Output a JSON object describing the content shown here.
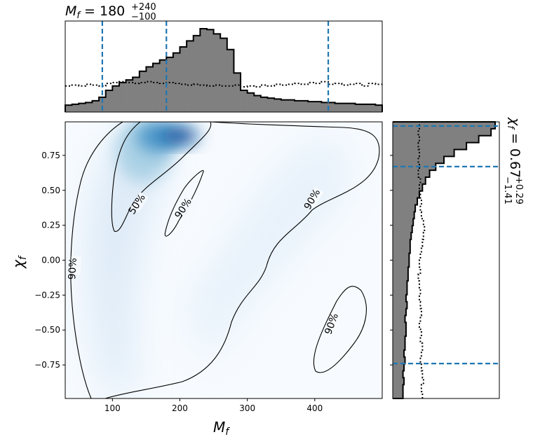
{
  "chart_data": {
    "type": "corner",
    "title_top": "M_f = 180 +240 −100",
    "top_stat": {
      "symbol": "M",
      "subscript": "f",
      "value": "180",
      "upper": "+240",
      "lower": "−100"
    },
    "right_stat": {
      "symbol": "χ",
      "subscript": "f",
      "value": "0.67",
      "upper": "+0.29",
      "lower": "−1.41"
    },
    "xlabel": {
      "symbol": "M",
      "subscript": "f"
    },
    "ylabel": {
      "symbol": "χ",
      "subscript": "f"
    },
    "xlim": [
      30,
      500
    ],
    "ylim": [
      -0.99,
      0.99
    ],
    "xticks": [
      100,
      200,
      300,
      400
    ],
    "yticks": [
      0.75,
      0.5,
      0.25,
      0.0,
      -0.25,
      -0.5,
      -0.75
    ],
    "ytick_labels": [
      "0.75",
      "0.50",
      "0.25",
      "0.00",
      "−0.25",
      "−0.50",
      "−0.75"
    ],
    "contour_labels": [
      "50%",
      "90%",
      "90%",
      "90%",
      "90%"
    ],
    "colors": {
      "histogram_fill": "#808080",
      "quantile_line": "#1f77b4",
      "density": "#08519c"
    },
    "mass_quantiles": [
      85,
      180,
      420
    ],
    "spin_quantiles": [
      -0.74,
      0.67,
      0.96
    ],
    "mass_bins": [
      30,
      500,
      47
    ],
    "mass_posterior_rel": [
      0.08,
      0.09,
      0.1,
      0.11,
      0.13,
      0.17,
      0.25,
      0.3,
      0.34,
      0.37,
      0.4,
      0.47,
      0.52,
      0.56,
      0.6,
      0.63,
      0.68,
      0.75,
      0.82,
      0.88,
      0.96,
      0.95,
      0.9,
      0.85,
      0.72,
      0.45,
      0.25,
      0.22,
      0.19,
      0.17,
      0.16,
      0.15,
      0.14,
      0.14,
      0.13,
      0.13,
      0.12,
      0.12,
      0.11,
      0.11,
      0.1,
      0.1,
      0.1,
      0.09,
      0.09,
      0.09,
      0.08
    ],
    "mass_prior_rel": [
      0.3,
      0.31,
      0.3,
      0.32,
      0.31,
      0.3,
      0.33,
      0.34,
      0.35,
      0.34,
      0.33,
      0.34,
      0.35,
      0.34,
      0.33,
      0.34,
      0.33,
      0.32,
      0.31,
      0.32,
      0.31,
      0.3,
      0.31,
      0.3,
      0.3,
      0.31,
      0.29,
      0.3,
      0.29,
      0.31,
      0.3,
      0.32,
      0.31,
      0.32,
      0.33,
      0.32,
      0.34,
      0.33,
      0.35,
      0.32,
      0.33,
      0.31,
      0.32,
      0.33,
      0.3,
      0.33,
      0.32
    ],
    "spin_bins": [
      -0.99,
      0.99,
      40
    ],
    "spin_posterior_rel": [
      0.1,
      0.1,
      0.11,
      0.1,
      0.11,
      0.12,
      0.11,
      0.12,
      0.12,
      0.13,
      0.13,
      0.12,
      0.13,
      0.14,
      0.13,
      0.14,
      0.14,
      0.15,
      0.15,
      0.16,
      0.16,
      0.17,
      0.17,
      0.18,
      0.19,
      0.2,
      0.21,
      0.22,
      0.24,
      0.26,
      0.29,
      0.32,
      0.36,
      0.42,
      0.5,
      0.6,
      0.72,
      0.84,
      0.96,
      1.0
    ],
    "spin_prior_rel": [
      0.29,
      0.28,
      0.3,
      0.29,
      0.28,
      0.27,
      0.28,
      0.29,
      0.27,
      0.28,
      0.26,
      0.27,
      0.28,
      0.27,
      0.26,
      0.27,
      0.26,
      0.25,
      0.27,
      0.26,
      0.27,
      0.28,
      0.29,
      0.3,
      0.31,
      0.3,
      0.28,
      0.27,
      0.28,
      0.27,
      0.26,
      0.27,
      0.25,
      0.26,
      0.25,
      0.26,
      0.25,
      0.26,
      0.25,
      0.26
    ],
    "density_peak": {
      "x": 200,
      "y": 0.89
    }
  }
}
